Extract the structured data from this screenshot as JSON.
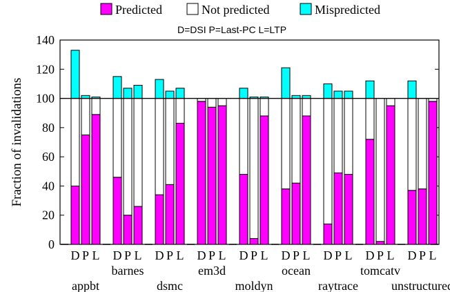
{
  "chart_data": {
    "type": "bar",
    "stacked": true,
    "legend": {
      "placement": "top",
      "entries": [
        {
          "name": "Predicted",
          "color": "#ff00ff"
        },
        {
          "name": "Not predicted",
          "color": "#ffffff"
        },
        {
          "name": "Mispredicted",
          "color": "#00ffff"
        }
      ]
    },
    "key_text": "D=DSI   P=Last-PC   L=LTP",
    "ylabel": "Fraction of invalidations",
    "ylim": [
      0,
      140
    ],
    "yticks": [
      0,
      20,
      40,
      60,
      80,
      100,
      120,
      140
    ],
    "reference_line": 100,
    "bar_labels": [
      "D",
      "P",
      "L"
    ],
    "groups": [
      {
        "name": "appbt",
        "row": 2,
        "bars": [
          {
            "predicted": 40,
            "not_predicted": 60,
            "mispredicted": 33
          },
          {
            "predicted": 75,
            "not_predicted": 25,
            "mispredicted": 2
          },
          {
            "predicted": 89,
            "not_predicted": 11,
            "mispredicted": 1
          }
        ]
      },
      {
        "name": "barnes",
        "row": 1,
        "bars": [
          {
            "predicted": 46,
            "not_predicted": 54,
            "mispredicted": 15
          },
          {
            "predicted": 20,
            "not_predicted": 80,
            "mispredicted": 7
          },
          {
            "predicted": 26,
            "not_predicted": 74,
            "mispredicted": 9
          }
        ]
      },
      {
        "name": "dsmc",
        "row": 2,
        "bars": [
          {
            "predicted": 34,
            "not_predicted": 66,
            "mispredicted": 13
          },
          {
            "predicted": 41,
            "not_predicted": 59,
            "mispredicted": 5
          },
          {
            "predicted": 83,
            "not_predicted": 17,
            "mispredicted": 7
          }
        ]
      },
      {
        "name": "em3d",
        "row": 1,
        "bars": [
          {
            "predicted": 98,
            "not_predicted": 2,
            "mispredicted": 0
          },
          {
            "predicted": 94,
            "not_predicted": 6,
            "mispredicted": 0
          },
          {
            "predicted": 95,
            "not_predicted": 5,
            "mispredicted": 0
          }
        ]
      },
      {
        "name": "moldyn",
        "row": 2,
        "bars": [
          {
            "predicted": 48,
            "not_predicted": 52,
            "mispredicted": 7
          },
          {
            "predicted": 4,
            "not_predicted": 96,
            "mispredicted": 1
          },
          {
            "predicted": 88,
            "not_predicted": 12,
            "mispredicted": 1
          }
        ]
      },
      {
        "name": "ocean",
        "row": 1,
        "bars": [
          {
            "predicted": 38,
            "not_predicted": 62,
            "mispredicted": 21
          },
          {
            "predicted": 42,
            "not_predicted": 58,
            "mispredicted": 2
          },
          {
            "predicted": 88,
            "not_predicted": 12,
            "mispredicted": 2
          }
        ]
      },
      {
        "name": "raytrace",
        "row": 2,
        "bars": [
          {
            "predicted": 14,
            "not_predicted": 86,
            "mispredicted": 10
          },
          {
            "predicted": 49,
            "not_predicted": 51,
            "mispredicted": 5
          },
          {
            "predicted": 48,
            "not_predicted": 52,
            "mispredicted": 5
          }
        ]
      },
      {
        "name": "tomcatv",
        "row": 1,
        "bars": [
          {
            "predicted": 72,
            "not_predicted": 28,
            "mispredicted": 12
          },
          {
            "predicted": 2,
            "not_predicted": 98,
            "mispredicted": 0
          },
          {
            "predicted": 95,
            "not_predicted": 5,
            "mispredicted": 0
          }
        ]
      },
      {
        "name": "unstructured",
        "row": 2,
        "bars": [
          {
            "predicted": 37,
            "not_predicted": 63,
            "mispredicted": 12
          },
          {
            "predicted": 38,
            "not_predicted": 62,
            "mispredicted": 0
          },
          {
            "predicted": 98,
            "not_predicted": 2,
            "mispredicted": 0
          }
        ]
      }
    ]
  }
}
